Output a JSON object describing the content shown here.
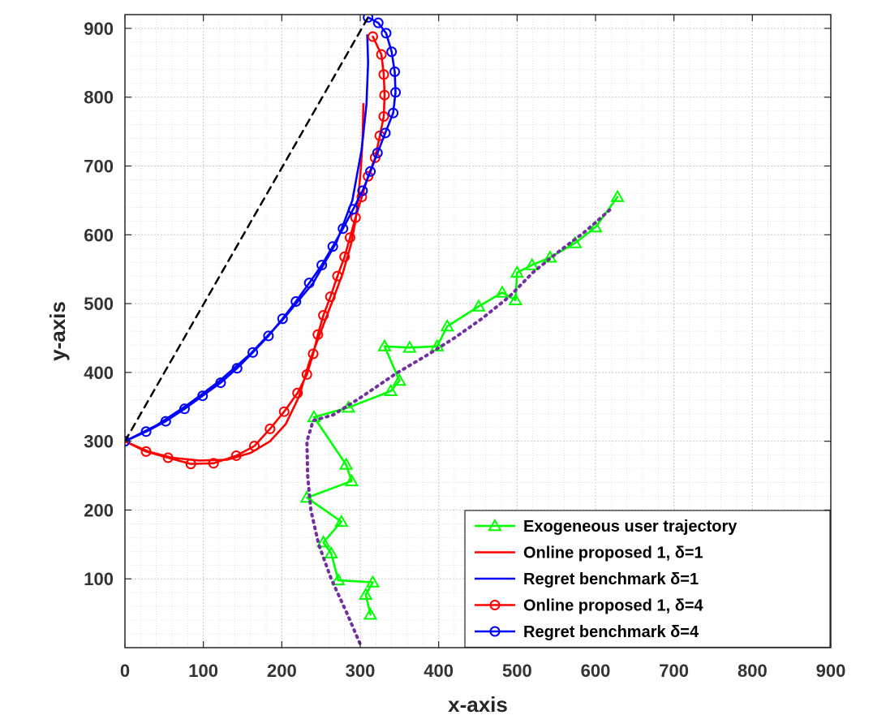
{
  "chart_data": {
    "type": "line",
    "xlabel": "x-axis",
    "ylabel": "y-axis",
    "xlim": [
      0,
      900
    ],
    "ylim": [
      0,
      920
    ],
    "x_ticks": [
      0,
      100,
      200,
      300,
      400,
      500,
      600,
      700,
      800,
      900
    ],
    "y_ticks": [
      100,
      200,
      300,
      400,
      500,
      600,
      700,
      800,
      900
    ],
    "grid": true,
    "minor_grid": true,
    "legend_position": "bottom-right",
    "series": [
      {
        "name": "Exogeneous user trajectory",
        "color": "#00ff00",
        "line": "solid",
        "marker": "triangle",
        "in_legend": true,
        "points": [
          [
            313,
            48
          ],
          [
            307,
            77
          ],
          [
            316,
            95
          ],
          [
            272,
            98
          ],
          [
            263,
            137
          ],
          [
            253,
            153
          ],
          [
            276,
            183
          ],
          [
            232,
            218
          ],
          [
            289,
            242
          ],
          [
            282,
            266
          ],
          [
            241,
            335
          ],
          [
            285,
            349
          ],
          [
            339,
            373
          ],
          [
            350,
            388
          ],
          [
            331,
            438
          ],
          [
            363,
            436
          ],
          [
            398,
            438
          ],
          [
            411,
            467
          ],
          [
            451,
            496
          ],
          [
            481,
            516
          ],
          [
            498,
            505
          ],
          [
            500,
            545
          ],
          [
            519,
            556
          ],
          [
            542,
            567
          ],
          [
            574,
            588
          ],
          [
            600,
            611
          ],
          [
            628,
            655
          ]
        ]
      },
      {
        "name": "Online proposed 1, δ=1",
        "color": "#ff0000",
        "line": "solid",
        "marker": "none",
        "in_legend": true,
        "points": [
          [
            0,
            300
          ],
          [
            30,
            285
          ],
          [
            60,
            276
          ],
          [
            95,
            272
          ],
          [
            130,
            273
          ],
          [
            160,
            283
          ],
          [
            185,
            300
          ],
          [
            205,
            325
          ],
          [
            222,
            365
          ],
          [
            235,
            415
          ],
          [
            250,
            460
          ],
          [
            265,
            505
          ],
          [
            278,
            545
          ],
          [
            288,
            585
          ],
          [
            294,
            620
          ],
          [
            298,
            660
          ],
          [
            301,
            700
          ],
          [
            303,
            740
          ],
          [
            304,
            790
          ]
        ]
      },
      {
        "name": "Regret benchmark δ=1",
        "color": "#0000ff",
        "line": "solid",
        "marker": "none",
        "in_legend": true,
        "points": [
          [
            0,
            300
          ],
          [
            40,
            323
          ],
          [
            80,
            353
          ],
          [
            120,
            387
          ],
          [
            160,
            427
          ],
          [
            200,
            475
          ],
          [
            240,
            530
          ],
          [
            270,
            590
          ],
          [
            290,
            650
          ],
          [
            302,
            725
          ],
          [
            308,
            790
          ],
          [
            310,
            850
          ],
          [
            309,
            890
          ]
        ]
      },
      {
        "name": "Online proposed 1, δ=4",
        "color": "#ff0000",
        "line": "solid",
        "marker": "circle",
        "in_legend": true,
        "points": [
          [
            0,
            300
          ],
          [
            27,
            285
          ],
          [
            55,
            276
          ],
          [
            84,
            267
          ],
          [
            113,
            268
          ],
          [
            142,
            279
          ],
          [
            165,
            293
          ],
          [
            185,
            318
          ],
          [
            203,
            343
          ],
          [
            220,
            370
          ],
          [
            232,
            397
          ],
          [
            240,
            427
          ],
          [
            246,
            455
          ],
          [
            253,
            483
          ],
          [
            262,
            510
          ],
          [
            271,
            540
          ],
          [
            280,
            568
          ],
          [
            287,
            596
          ],
          [
            294,
            625
          ],
          [
            302,
            655
          ],
          [
            310,
            685
          ],
          [
            319,
            712
          ],
          [
            325,
            744
          ],
          [
            330,
            772
          ],
          [
            331,
            803
          ],
          [
            330,
            833
          ],
          [
            327,
            862
          ],
          [
            316,
            888
          ]
        ]
      },
      {
        "name": "Regret benchmark δ=4",
        "color": "#0000ff",
        "line": "solid",
        "marker": "circle",
        "in_legend": true,
        "points": [
          [
            0,
            300
          ],
          [
            27,
            314
          ],
          [
            52,
            329
          ],
          [
            76,
            347
          ],
          [
            99,
            366
          ],
          [
            122,
            385
          ],
          [
            143,
            406
          ],
          [
            163,
            429
          ],
          [
            183,
            453
          ],
          [
            201,
            478
          ],
          [
            218,
            503
          ],
          [
            235,
            530
          ],
          [
            251,
            556
          ],
          [
            265,
            583
          ],
          [
            278,
            609
          ],
          [
            291,
            637
          ],
          [
            303,
            664
          ],
          [
            313,
            692
          ],
          [
            322,
            719
          ],
          [
            332,
            748
          ],
          [
            342,
            777
          ],
          [
            345,
            807
          ],
          [
            344,
            837
          ],
          [
            340,
            866
          ],
          [
            333,
            893
          ],
          [
            323,
            908
          ],
          [
            310,
            916
          ]
        ]
      },
      {
        "name": "",
        "color": "#000000",
        "line": "dashed",
        "marker": "none",
        "in_legend": false,
        "points": [
          [
            0,
            300
          ],
          [
            310,
            916
          ]
        ]
      },
      {
        "name": "",
        "color": "#7030a0",
        "line": "dotted",
        "marker": "none",
        "in_legend": false,
        "points": [
          [
            618,
            636
          ],
          [
            585,
            603
          ],
          [
            550,
            573
          ],
          [
            520,
            545
          ],
          [
            490,
            510
          ],
          [
            455,
            478
          ],
          [
            420,
            450
          ],
          [
            385,
            425
          ],
          [
            345,
            398
          ],
          [
            300,
            363
          ],
          [
            265,
            338
          ],
          [
            240,
            330
          ],
          [
            232,
            300
          ],
          [
            233,
            250
          ],
          [
            237,
            200
          ],
          [
            247,
            150
          ],
          [
            263,
            100
          ],
          [
            283,
            50
          ],
          [
            300,
            5
          ]
        ]
      }
    ]
  }
}
